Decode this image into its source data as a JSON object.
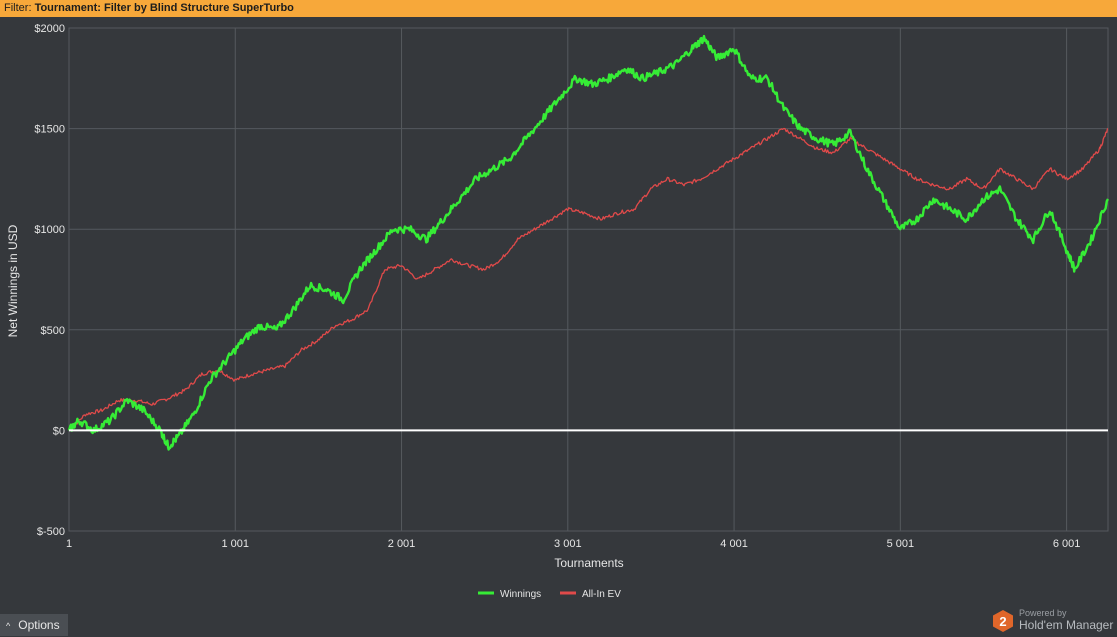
{
  "filter": {
    "label": "Filter:",
    "value": "Tournament: Filter by Blind Structure  SuperTurbo"
  },
  "colors": {
    "winnings": "#36ec36",
    "allin_ev": "#e04a4a",
    "zero_line": "#ffffff",
    "grid": "#55595e",
    "plot_bg": "#35383c"
  },
  "chart_data": {
    "type": "line",
    "xlabel": "Tournaments",
    "ylabel": "Net Winnings in USD",
    "xlim": [
      1,
      6250
    ],
    "ylim": [
      -500,
      2000
    ],
    "x_ticks": [
      1,
      1001,
      2001,
      3001,
      4001,
      5001,
      6001
    ],
    "x_tick_labels": [
      "1",
      "1 001",
      "2 001",
      "3 001",
      "4 001",
      "5 001",
      "6 001"
    ],
    "y_ticks": [
      -500,
      0,
      500,
      1000,
      1500,
      2000
    ],
    "y_tick_labels": [
      "$-500",
      "$0",
      "$500",
      "$1000",
      "$1500",
      "$2000"
    ],
    "grid": true,
    "legend_position": "bottom-center",
    "series": [
      {
        "name": "Winnings",
        "x": [
          1,
          60,
          150,
          250,
          350,
          450,
          550,
          600,
          660,
          750,
          850,
          950,
          1050,
          1150,
          1250,
          1350,
          1450,
          1550,
          1650,
          1750,
          1850,
          1950,
          2050,
          2150,
          2250,
          2350,
          2450,
          2550,
          2650,
          2750,
          2850,
          2950,
          3050,
          3150,
          3250,
          3350,
          3450,
          3550,
          3650,
          3750,
          3820,
          3900,
          4000,
          4100,
          4200,
          4300,
          4400,
          4500,
          4600,
          4700,
          4800,
          4900,
          5000,
          5100,
          5200,
          5300,
          5400,
          5500,
          5600,
          5700,
          5800,
          5900,
          6000,
          6050,
          6150,
          6250
        ],
        "y": [
          0,
          50,
          0,
          50,
          150,
          100,
          0,
          -80,
          -30,
          80,
          250,
          350,
          450,
          520,
          500,
          600,
          720,
          700,
          650,
          800,
          900,
          1000,
          1000,
          950,
          1050,
          1150,
          1250,
          1300,
          1350,
          1450,
          1550,
          1650,
          1750,
          1720,
          1750,
          1800,
          1750,
          1780,
          1820,
          1900,
          1950,
          1850,
          1900,
          1750,
          1750,
          1600,
          1500,
          1450,
          1420,
          1480,
          1300,
          1150,
          1000,
          1050,
          1150,
          1100,
          1050,
          1150,
          1200,
          1050,
          950,
          1100,
          900,
          800,
          950,
          1150
        ]
      },
      {
        "name": "All-In EV",
        "x": [
          1,
          100,
          200,
          300,
          400,
          500,
          600,
          700,
          800,
          900,
          1000,
          1100,
          1200,
          1300,
          1400,
          1500,
          1600,
          1700,
          1800,
          1900,
          2000,
          2100,
          2200,
          2300,
          2400,
          2500,
          2600,
          2700,
          2800,
          2900,
          3000,
          3100,
          3200,
          3300,
          3400,
          3500,
          3600,
          3700,
          3800,
          3900,
          4000,
          4100,
          4200,
          4300,
          4400,
          4500,
          4600,
          4700,
          4800,
          4900,
          5000,
          5100,
          5200,
          5300,
          5400,
          5500,
          5600,
          5700,
          5800,
          5900,
          6000,
          6100,
          6200,
          6250
        ],
        "y": [
          0,
          80,
          100,
          150,
          150,
          130,
          160,
          200,
          280,
          300,
          250,
          280,
          300,
          320,
          400,
          450,
          520,
          550,
          600,
          800,
          820,
          750,
          800,
          850,
          820,
          800,
          850,
          950,
          1000,
          1050,
          1100,
          1080,
          1050,
          1080,
          1100,
          1200,
          1250,
          1220,
          1250,
          1300,
          1350,
          1400,
          1450,
          1500,
          1450,
          1400,
          1380,
          1450,
          1400,
          1350,
          1300,
          1250,
          1220,
          1200,
          1250,
          1200,
          1300,
          1250,
          1200,
          1300,
          1250,
          1300,
          1400,
          1500
        ]
      }
    ]
  },
  "options": {
    "chevron": "^",
    "label": "Options"
  },
  "brand": {
    "logo_number": "2",
    "powered_label": "Powered by",
    "name": "Hold'em Manager"
  }
}
